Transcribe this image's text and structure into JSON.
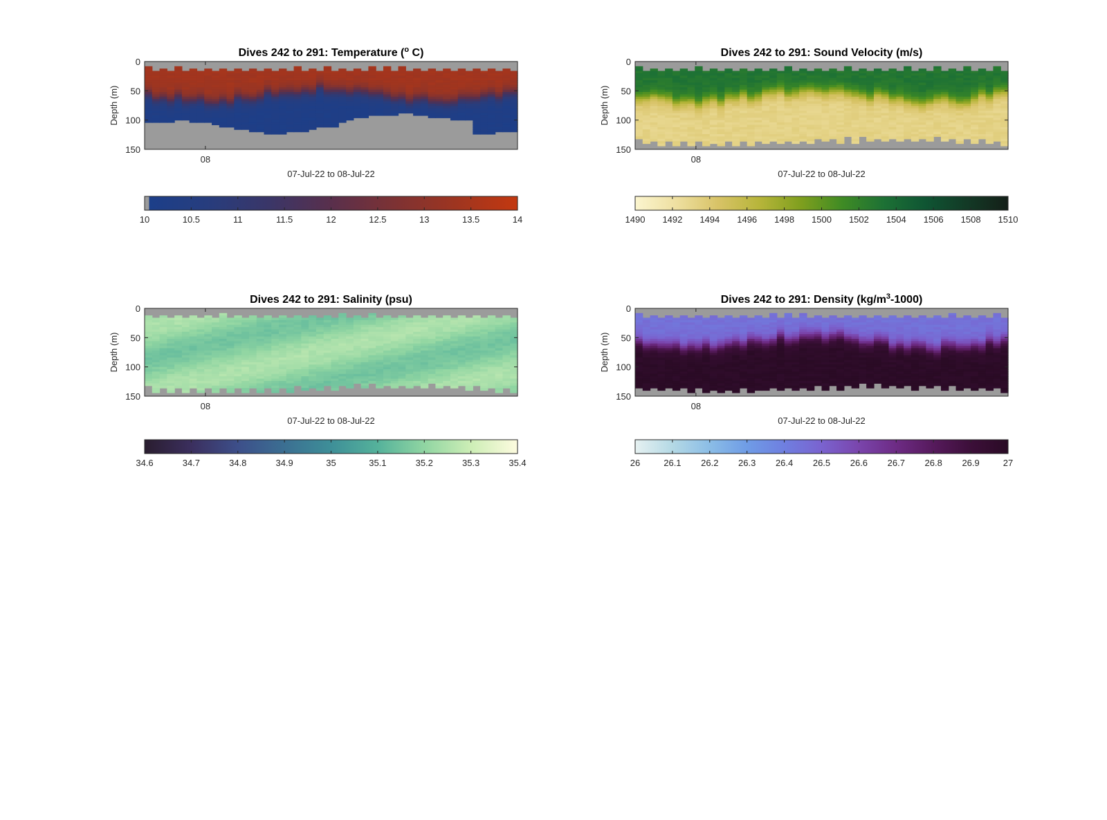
{
  "figure": {
    "background": "#ffffff",
    "missing_data_color": "#9b9b9b"
  },
  "chart_data": [
    {
      "type": "heatmap",
      "id": "temperature",
      "title": "Dives 242 to 291: Temperature (",
      "title_superscript": "o",
      "title_suffix": " C)",
      "xlabel": "07-Jul-22 to 08-Jul-22",
      "ylabel": "Depth (m)",
      "ylim": [
        0,
        150
      ],
      "y_reversed": true,
      "y_ticks": [
        "0",
        "50",
        "100",
        "150"
      ],
      "x_ticks": [
        "08"
      ],
      "dives": 50,
      "colorbar": {
        "ticks": [
          "10",
          "10.5",
          "11",
          "11.5",
          "12",
          "12.5",
          "13",
          "13.5",
          "14"
        ],
        "range": [
          10,
          14
        ],
        "colors": [
          "#1b3f8a",
          "#273d7e",
          "#3a3668",
          "#592f4c",
          "#7c3234",
          "#9e3520",
          "#c33810"
        ]
      },
      "value_profile": {
        "surface": 13.4,
        "deep": 10.2,
        "thermocline_depth": 50
      }
    },
    {
      "type": "heatmap",
      "id": "sound-velocity",
      "title": "Dives 242 to 291: Sound Velocity (m/s)",
      "xlabel": "07-Jul-22 to 08-Jul-22",
      "ylabel": "Depth (m)",
      "ylim": [
        0,
        150
      ],
      "y_reversed": true,
      "y_ticks": [
        "0",
        "50",
        "100",
        "150"
      ],
      "x_ticks": [
        "08"
      ],
      "dives": 50,
      "colorbar": {
        "ticks": [
          "1490",
          "1492",
          "1494",
          "1496",
          "1498",
          "1500",
          "1502",
          "1504",
          "1506",
          "1508",
          "1510"
        ],
        "range": [
          1490,
          1510
        ],
        "colors": [
          "#fbf5cf",
          "#eedfa0",
          "#d8c367",
          "#b7b53a",
          "#7f9f1e",
          "#3f8b24",
          "#1d7135",
          "#0f5533",
          "#133a26",
          "#141f18"
        ]
      },
      "value_profile": {
        "surface": 1503,
        "deep": 1493.2,
        "thermocline_depth": 50
      }
    },
    {
      "type": "heatmap",
      "id": "salinity",
      "title": "Dives 242 to 291: Salinity (psu)",
      "xlabel": "07-Jul-22 to 08-Jul-22",
      "ylabel": "Depth (m)",
      "ylim": [
        0,
        150
      ],
      "y_reversed": true,
      "y_ticks": [
        "0",
        "50",
        "100",
        "150"
      ],
      "x_ticks": [
        "08"
      ],
      "dives": 50,
      "colorbar": {
        "ticks": [
          "34.6",
          "34.7",
          "34.8",
          "34.9",
          "35",
          "35.1",
          "35.2",
          "35.3",
          "35.4"
        ],
        "range": [
          34.6,
          35.4
        ],
        "colors": [
          "#2a1d2f",
          "#3b2f5e",
          "#3d4f8a",
          "#3b6f92",
          "#3e8f98",
          "#55b29b",
          "#90d5a2",
          "#cdeeb6",
          "#fdfbdf"
        ]
      },
      "value_profile": {
        "surface": 35.17,
        "deep": 35.23,
        "thermocline_depth": 55
      }
    },
    {
      "type": "heatmap",
      "id": "density",
      "title": "Dives 242 to 291: Density (kg/m",
      "title_superscript": "3",
      "title_suffix": "-1000)",
      "xlabel": "07-Jul-22 to 08-Jul-22",
      "ylabel": "Depth (m)",
      "ylim": [
        0,
        150
      ],
      "y_reversed": true,
      "y_ticks": [
        "0",
        "50",
        "100",
        "150"
      ],
      "x_ticks": [
        "08"
      ],
      "dives": 50,
      "colorbar": {
        "ticks": [
          "26",
          "26.1",
          "26.2",
          "26.3",
          "26.4",
          "26.5",
          "26.6",
          "26.7",
          "26.8",
          "26.9",
          "27"
        ],
        "range": [
          26,
          27
        ],
        "colors": [
          "#e6f1f1",
          "#b4d9e5",
          "#8bbde6",
          "#6f9ce6",
          "#6f7fe0",
          "#7a63cf",
          "#7a45ac",
          "#6d2b84",
          "#561a5c",
          "#3c0f39",
          "#2a0b25"
        ]
      },
      "value_profile": {
        "surface": 26.45,
        "deep": 26.99,
        "thermocline_depth": 50
      }
    }
  ]
}
